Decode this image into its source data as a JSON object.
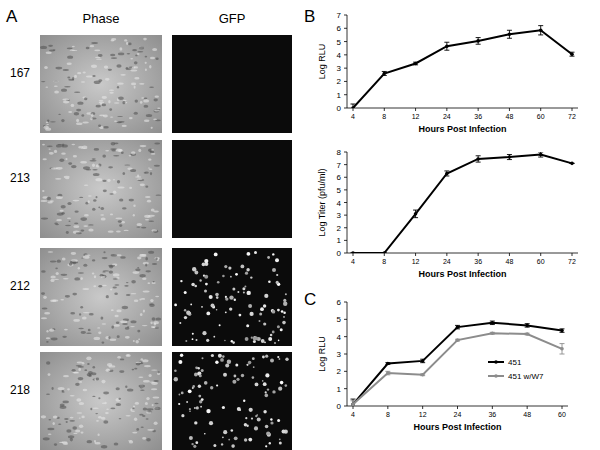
{
  "panels": {
    "labels": [
      "A",
      "B",
      "C"
    ],
    "panel_a": {
      "columns": [
        "Phase",
        "GFP"
      ],
      "rows": [
        "167",
        "213",
        "212",
        "218"
      ],
      "fluorescent": [
        false,
        false,
        true,
        true
      ]
    }
  },
  "chart_data": [
    {
      "type": "line",
      "ylabel": "Log RLU",
      "xlabel": "Hours Post Infection",
      "categories": [
        "4",
        "8",
        "12",
        "24",
        "36",
        "48",
        "60",
        "72"
      ],
      "values": [
        0,
        2.6,
        3.35,
        4.65,
        5.05,
        5.55,
        5.85,
        4.05
      ],
      "errors": [
        0.3,
        0.15,
        0.1,
        0.3,
        0.25,
        0.3,
        0.35,
        0.15
      ],
      "color": "#000000",
      "marker": "circle",
      "ylim": [
        0,
        7
      ],
      "yticks": [
        0,
        1,
        2,
        3,
        4,
        5,
        6,
        7
      ],
      "grid": false
    },
    {
      "type": "line",
      "ylabel": "Log Titer (pfu/ml)",
      "xlabel": "Hours Post Infection",
      "categories": [
        "4",
        "8",
        "12",
        "24",
        "36",
        "48",
        "60",
        "72"
      ],
      "values": [
        0,
        0,
        3.1,
        6.3,
        7.45,
        7.6,
        7.8,
        7.1
      ],
      "errors": [
        0,
        0,
        0.3,
        0.2,
        0.25,
        0.2,
        0.2,
        0
      ],
      "color": "#000000",
      "marker": "circle",
      "ylim": [
        0,
        8
      ],
      "yticks": [
        0,
        1,
        2,
        3,
        4,
        5,
        6,
        7,
        8
      ],
      "grid": false
    },
    {
      "type": "line",
      "ylabel": "Log RLU",
      "xlabel": "Hours Post Infection",
      "categories": [
        "4",
        "8",
        "12",
        "24",
        "36",
        "48",
        "60"
      ],
      "series": [
        {
          "name": "451",
          "color": "#000000",
          "values": [
            0.1,
            2.45,
            2.6,
            4.55,
            4.8,
            4.65,
            4.35
          ],
          "errors": [
            0.3,
            0.05,
            0.1,
            0.1,
            0.1,
            0.1,
            0.1
          ]
        },
        {
          "name": "451 w/W7",
          "color": "#8c8c8c",
          "values": [
            0.1,
            1.9,
            1.8,
            3.8,
            4.2,
            4.15,
            3.3
          ],
          "errors": [
            0.2,
            0.1,
            0.05,
            0.05,
            0.05,
            0.05,
            0.3
          ]
        }
      ],
      "marker": "circle",
      "legend": "right",
      "ylim": [
        0,
        6
      ],
      "yticks": [
        0,
        1,
        2,
        3,
        4,
        5,
        6
      ],
      "grid": false
    }
  ]
}
